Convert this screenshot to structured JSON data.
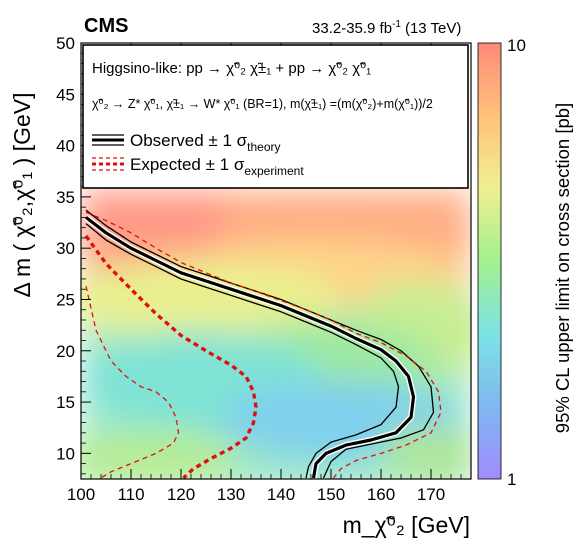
{
  "header": {
    "experiment": "CMS",
    "lumi": "33.2-35.9 fb",
    "lumi_sup": "-1",
    "energy": "(13 TeV)"
  },
  "legend": {
    "process": "Higgsino-like: pp → χ̃⁰₂ χ̃±₁ + pp → χ̃⁰₂ χ̃⁰₁",
    "decay": "χ̃⁰₂ → Z* χ̃⁰₁, χ̃±₁ → W* χ̃⁰₁ (BR=1), m(χ̃±₁) =(m(χ̃⁰₂)+m(χ̃⁰₁))/2",
    "observed": "Observed ± 1 σ",
    "observed_sub": "theory",
    "expected": "Expected ± 1 σ",
    "expected_sub": "experiment"
  },
  "colorbar": {
    "label": "95% CL upper limit on cross section [pb]",
    "max_label": "10",
    "min_label": "1",
    "scale": "log",
    "range": [
      1,
      10
    ],
    "colors": [
      "#a08cff",
      "#7fb8f0",
      "#7ce3e6",
      "#a3f08f",
      "#f0ef8f",
      "#ffc27a",
      "#ff8a7a"
    ]
  },
  "chart_data": {
    "type": "heatmap",
    "xlabel": "m_χ̃⁰₂ [GeV]",
    "ylabel": "Δ m ( χ̃⁰₂,χ̃⁰₁ ) [GeV]",
    "xlim": [
      100,
      178
    ],
    "ylim": [
      7.5,
      50
    ],
    "xticks": [
      "100",
      "110",
      "120",
      "130",
      "140",
      "150",
      "160",
      "170"
    ],
    "yticks": [
      "10",
      "15",
      "20",
      "25",
      "30",
      "35",
      "40",
      "45",
      "50"
    ],
    "heatmap_ylim_top": 36,
    "contours": [
      {
        "name": "Observed",
        "style": "black-solid-thick",
        "points": [
          [
            101,
            33
          ],
          [
            105,
            31.5
          ],
          [
            110,
            30
          ],
          [
            115,
            28.8
          ],
          [
            120,
            27.6
          ],
          [
            125,
            26.8
          ],
          [
            130,
            26
          ],
          [
            135,
            25.2
          ],
          [
            140,
            24.4
          ],
          [
            145,
            23.4
          ],
          [
            150,
            22.4
          ],
          [
            155,
            21.2
          ],
          [
            160,
            20.1
          ],
          [
            163,
            19
          ],
          [
            165.5,
            17.5
          ],
          [
            166.5,
            15.5
          ],
          [
            166,
            13.5
          ],
          [
            163,
            12
          ],
          [
            158,
            11.3
          ],
          [
            153,
            10.8
          ],
          [
            149,
            10
          ],
          [
            147,
            9
          ],
          [
            146.5,
            7.6
          ]
        ]
      },
      {
        "name": "Observed +1 sigma theory",
        "style": "black-solid-thin",
        "points": [
          [
            101,
            33.7
          ],
          [
            105,
            32.2
          ],
          [
            110,
            30.6
          ],
          [
            115,
            29.4
          ],
          [
            120,
            28.2
          ],
          [
            125,
            27.4
          ],
          [
            130,
            26.6
          ],
          [
            135,
            25.8
          ],
          [
            140,
            25
          ],
          [
            145,
            24
          ],
          [
            150,
            23
          ],
          [
            155,
            22
          ],
          [
            160,
            21.1
          ],
          [
            164,
            20
          ],
          [
            167.5,
            18.5
          ],
          [
            170,
            16.5
          ],
          [
            170.5,
            14
          ],
          [
            168.5,
            12.3
          ],
          [
            164,
            11.5
          ],
          [
            158,
            10.9
          ],
          [
            153,
            10.4
          ],
          [
            150,
            9.2
          ],
          [
            148.5,
            7.6
          ]
        ]
      },
      {
        "name": "Observed -1 sigma theory",
        "style": "black-solid-thin",
        "points": [
          [
            101,
            32.4
          ],
          [
            105,
            30.8
          ],
          [
            110,
            29.4
          ],
          [
            115,
            28.2
          ],
          [
            120,
            27
          ],
          [
            125,
            26.2
          ],
          [
            130,
            25.4
          ],
          [
            135,
            24.6
          ],
          [
            140,
            23.8
          ],
          [
            145,
            22.8
          ],
          [
            150,
            21.8
          ],
          [
            155,
            20.6
          ],
          [
            160,
            19.3
          ],
          [
            162.5,
            18
          ],
          [
            163.5,
            16.5
          ],
          [
            163,
            14.5
          ],
          [
            160,
            12.8
          ],
          [
            155,
            11.8
          ],
          [
            150,
            11.1
          ],
          [
            147,
            10
          ],
          [
            145.5,
            8.7
          ],
          [
            145,
            7.6
          ]
        ]
      },
      {
        "name": "Expected",
        "style": "red-dashed-thick",
        "points": [
          [
            101,
            31.2
          ],
          [
            105,
            28.5
          ],
          [
            110,
            26
          ],
          [
            115,
            23.6
          ],
          [
            120,
            21.5
          ],
          [
            125,
            20
          ],
          [
            130,
            18.6
          ],
          [
            133,
            17.5
          ],
          [
            134.5,
            16
          ],
          [
            135,
            14.5
          ],
          [
            134.5,
            13
          ],
          [
            133,
            11.5
          ],
          [
            130,
            10.5
          ],
          [
            126,
            9.5
          ],
          [
            122.5,
            8.5
          ],
          [
            120.5,
            7.6
          ]
        ]
      },
      {
        "name": "Expected +1 sigma experiment",
        "style": "red-dashed-thin",
        "points": [
          [
            101,
            33.5
          ],
          [
            105,
            32.7
          ],
          [
            110,
            31.5
          ],
          [
            115,
            30
          ],
          [
            120,
            28.6
          ],
          [
            125,
            27.6
          ],
          [
            130,
            26.6
          ],
          [
            135,
            25.8
          ],
          [
            140,
            24.9
          ],
          [
            145,
            24
          ],
          [
            150,
            23
          ],
          [
            155,
            21.7
          ],
          [
            160,
            20.8
          ],
          [
            165,
            19.5
          ],
          [
            169,
            18
          ],
          [
            171.5,
            16
          ],
          [
            172,
            14
          ],
          [
            170,
            12
          ],
          [
            165,
            10.8
          ],
          [
            160,
            10
          ],
          [
            155,
            9.3
          ],
          [
            152,
            8.5
          ],
          [
            150.5,
            7.6
          ]
        ]
      },
      {
        "name": "Expected -1 sigma experiment",
        "style": "red-dashed-thin",
        "points": [
          [
            101,
            26.3
          ],
          [
            103,
            22
          ],
          [
            106,
            19
          ],
          [
            109,
            17.5
          ],
          [
            112,
            16.5
          ],
          [
            115,
            16
          ],
          [
            117.5,
            15
          ],
          [
            119,
            13.5
          ],
          [
            119.5,
            12
          ],
          [
            118.5,
            11
          ],
          [
            115,
            10
          ],
          [
            110,
            9
          ],
          [
            106,
            8.2
          ],
          [
            104,
            7.6
          ]
        ]
      }
    ]
  }
}
